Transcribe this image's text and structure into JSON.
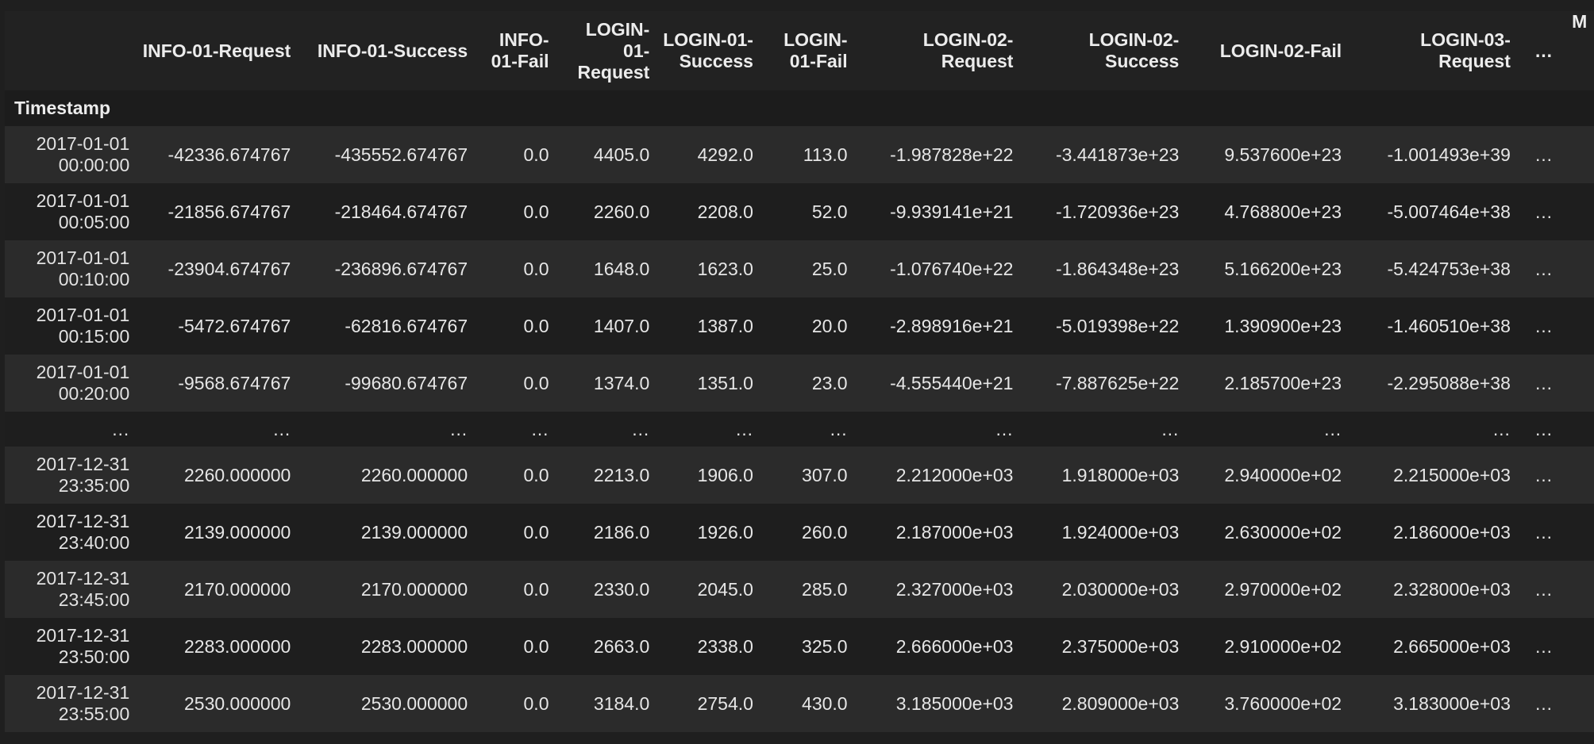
{
  "table": {
    "index_name": "Timestamp",
    "columns": [
      "INFO-01-Request",
      "INFO-01-Success",
      "INFO-01-Fail",
      "LOGIN-01-Request",
      "LOGIN-01-Success",
      "LOGIN-01-Fail",
      "LOGIN-02-Request",
      "LOGIN-02-Success",
      "LOGIN-02-Fail",
      "LOGIN-03-Request",
      "…",
      "M"
    ],
    "rows": [
      {
        "index": "2017-01-01 00:00:00",
        "cells": [
          "-42336.674767",
          "-435552.674767",
          "0.0",
          "4405.0",
          "4292.0",
          "113.0",
          "-1.987828e+22",
          "-3.441873e+23",
          "9.537600e+23",
          "-1.001493e+39",
          "…",
          ""
        ]
      },
      {
        "index": "2017-01-01 00:05:00",
        "cells": [
          "-21856.674767",
          "-218464.674767",
          "0.0",
          "2260.0",
          "2208.0",
          "52.0",
          "-9.939141e+21",
          "-1.720936e+23",
          "4.768800e+23",
          "-5.007464e+38",
          "…",
          ""
        ]
      },
      {
        "index": "2017-01-01 00:10:00",
        "cells": [
          "-23904.674767",
          "-236896.674767",
          "0.0",
          "1648.0",
          "1623.0",
          "25.0",
          "-1.076740e+22",
          "-1.864348e+23",
          "5.166200e+23",
          "-5.424753e+38",
          "…",
          ""
        ]
      },
      {
        "index": "2017-01-01 00:15:00",
        "cells": [
          "-5472.674767",
          "-62816.674767",
          "0.0",
          "1407.0",
          "1387.0",
          "20.0",
          "-2.898916e+21",
          "-5.019398e+22",
          "1.390900e+23",
          "-1.460510e+38",
          "…",
          ""
        ]
      },
      {
        "index": "2017-01-01 00:20:00",
        "cells": [
          "-9568.674767",
          "-99680.674767",
          "0.0",
          "1374.0",
          "1351.0",
          "23.0",
          "-4.555440e+21",
          "-7.887625e+22",
          "2.185700e+23",
          "-2.295088e+38",
          "…",
          ""
        ]
      },
      {
        "index": "…",
        "cells": [
          "…",
          "…",
          "…",
          "…",
          "…",
          "…",
          "…",
          "…",
          "…",
          "…",
          "…",
          ""
        ],
        "ellipsis": true
      },
      {
        "index": "2017-12-31 23:35:00",
        "cells": [
          "2260.000000",
          "2260.000000",
          "0.0",
          "2213.0",
          "1906.0",
          "307.0",
          "2.212000e+03",
          "1.918000e+03",
          "2.940000e+02",
          "2.215000e+03",
          "…",
          ""
        ]
      },
      {
        "index": "2017-12-31 23:40:00",
        "cells": [
          "2139.000000",
          "2139.000000",
          "0.0",
          "2186.0",
          "1926.0",
          "260.0",
          "2.187000e+03",
          "1.924000e+03",
          "2.630000e+02",
          "2.186000e+03",
          "…",
          ""
        ]
      },
      {
        "index": "2017-12-31 23:45:00",
        "cells": [
          "2170.000000",
          "2170.000000",
          "0.0",
          "2330.0",
          "2045.0",
          "285.0",
          "2.327000e+03",
          "2.030000e+03",
          "2.970000e+02",
          "2.328000e+03",
          "…",
          ""
        ]
      },
      {
        "index": "2017-12-31 23:50:00",
        "cells": [
          "2283.000000",
          "2283.000000",
          "0.0",
          "2663.0",
          "2338.0",
          "325.0",
          "2.666000e+03",
          "2.375000e+03",
          "2.910000e+02",
          "2.665000e+03",
          "…",
          ""
        ]
      },
      {
        "index": "2017-12-31 23:55:00",
        "cells": [
          "2530.000000",
          "2530.000000",
          "0.0",
          "3184.0",
          "2754.0",
          "430.0",
          "3.185000e+03",
          "2.809000e+03",
          "3.760000e+02",
          "3.183000e+03",
          "…",
          ""
        ]
      }
    ]
  },
  "colors": {
    "background": "#1f1f1f",
    "row_alt": "#2b2b2b",
    "text": "#e6e6e6"
  }
}
